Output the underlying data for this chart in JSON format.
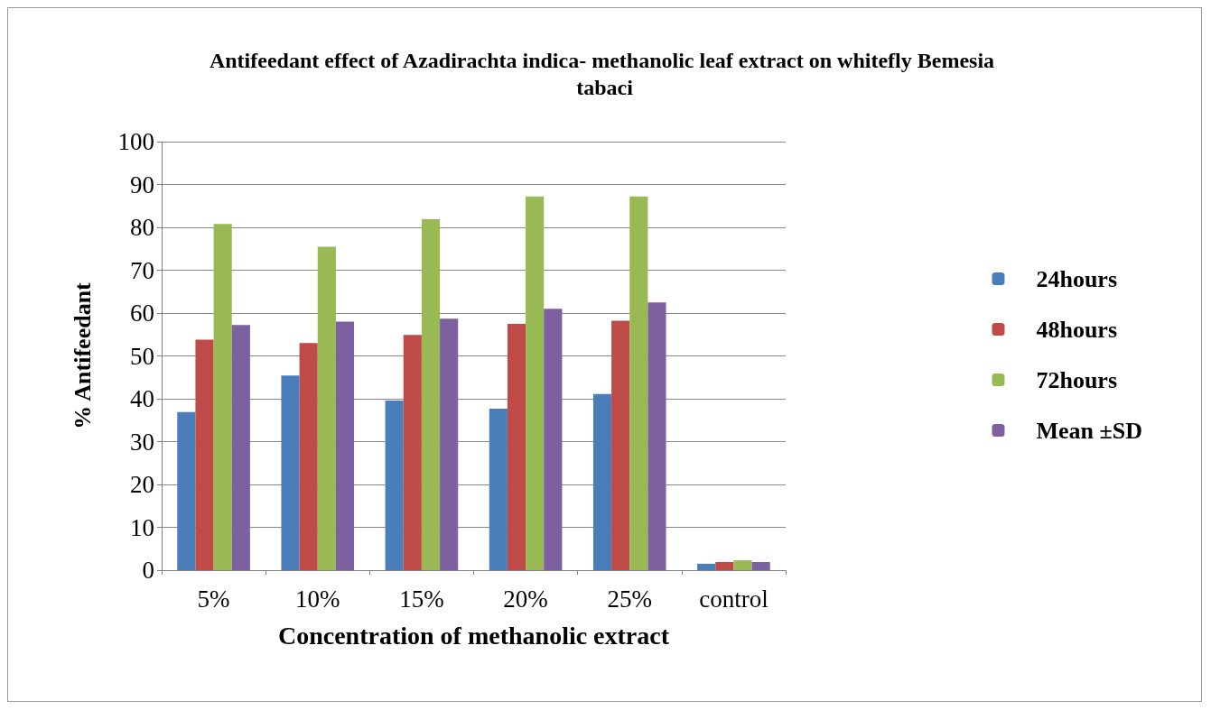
{
  "chart_data": {
    "type": "bar",
    "title": "Antifeedant effect of Azadirachta indica- methanolic leaf extract on whitefly Bemesia tabaci",
    "xlabel": "Concentration of methanolic extract",
    "ylabel": "% Antifeedant",
    "categories": [
      "5%",
      "10%",
      "15%",
      "20%",
      "25%",
      "control"
    ],
    "series": [
      {
        "name": "24hours",
        "color": "#4a7ebb",
        "values": [
          36.9,
          45.4,
          39.6,
          37.7,
          41.1,
          1.5
        ]
      },
      {
        "name": "48hours",
        "color": "#be4b48",
        "values": [
          53.8,
          53.0,
          54.9,
          57.5,
          58.2,
          1.9
        ]
      },
      {
        "name": "72hours",
        "color": "#98b954",
        "values": [
          80.8,
          75.5,
          81.9,
          87.2,
          87.2,
          2.3
        ]
      },
      {
        "name": "Mean ±SD",
        "color": "#7d60a0",
        "values": [
          57.2,
          58.0,
          58.7,
          61.0,
          62.5,
          1.9
        ]
      }
    ],
    "ylim": [
      0,
      100
    ],
    "yticks": [
      0,
      10,
      20,
      30,
      40,
      50,
      60,
      70,
      80,
      90,
      100
    ],
    "grid": "y",
    "legend": "right"
  }
}
